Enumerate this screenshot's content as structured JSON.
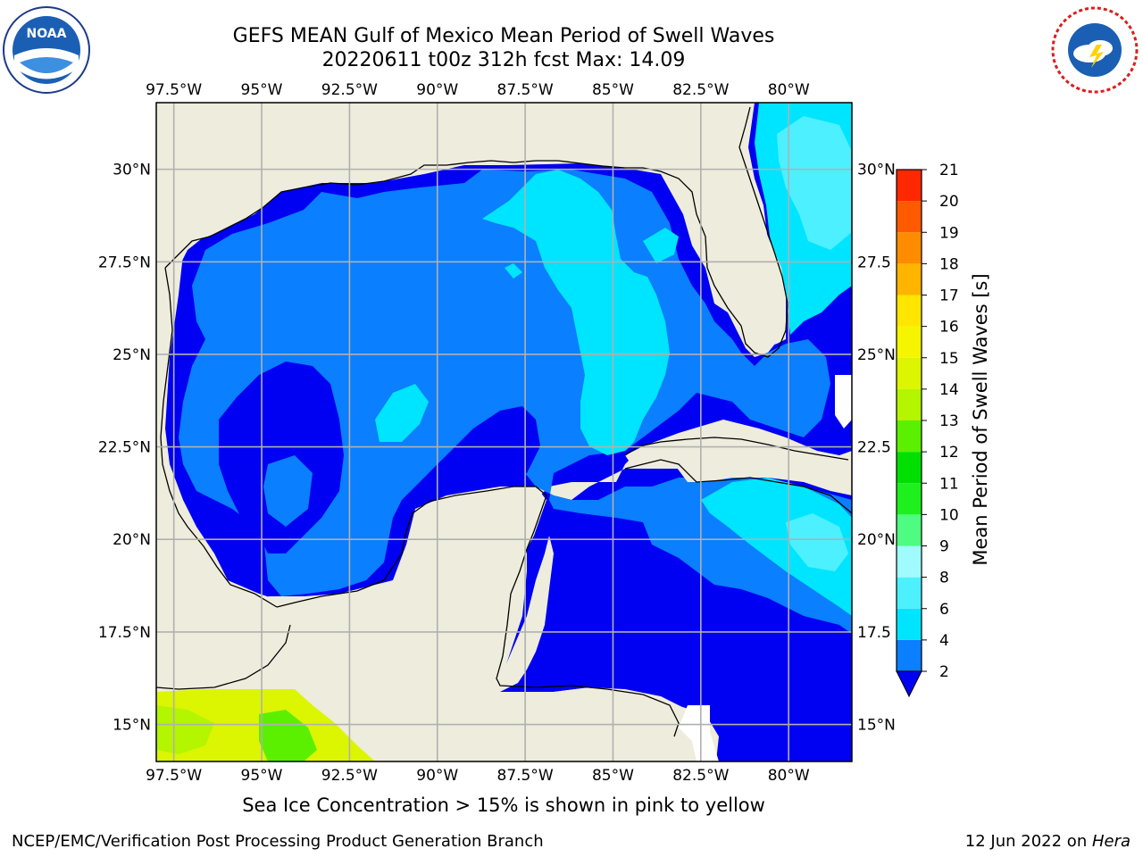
{
  "title": {
    "line1": "GEFS MEAN Gulf of Mexico Mean Period of Swell Waves",
    "line2": "20220611 t00z 312h fcst   Max: 14.09"
  },
  "logos": {
    "left": "noaa-logo",
    "right": "nws-logo",
    "left_text": "NOAA",
    "right_text": "NATIONAL WEATHER SERVICE"
  },
  "map": {
    "lon_labels": [
      "97.5°W",
      "95°W",
      "92.5°W",
      "90°W",
      "87.5°W",
      "85°W",
      "82.5°W",
      "80°W"
    ],
    "lat_labels_left": [
      "30°N",
      "27.5°N",
      "25°N",
      "22.5°N",
      "20°N",
      "17.5°N",
      "15°N"
    ],
    "lat_labels_right": [
      "30°N",
      "27.5",
      "25°N",
      "22.5",
      "20°N",
      "17.5",
      "15°N"
    ],
    "extent": {
      "lon_min": -98,
      "lon_max": -78.2,
      "lat_min": 14.0,
      "lat_max": 31.8
    },
    "colors": {
      "land": "#eeecdc",
      "grid": "#b0b0b0",
      "coast": "#000000"
    }
  },
  "colorbar": {
    "label": "Mean Period of Swell Waves [s]",
    "ticks": [
      "2",
      "4",
      "6",
      "8",
      "9",
      "10",
      "11",
      "12",
      "13",
      "14",
      "15",
      "16",
      "17",
      "18",
      "19",
      "20",
      "21"
    ],
    "colors": [
      "#0a7fff",
      "#00e5ff",
      "#4df0ff",
      "#a0fbff",
      "#4dfc80",
      "#1ef01e",
      "#00e000",
      "#5af000",
      "#b4f500",
      "#dcf500",
      "#f5f500",
      "#ffe600",
      "#ffb400",
      "#ff8c00",
      "#ff5a00",
      "#ff2800",
      "#ff0000"
    ],
    "under_color": "#0000f2"
  },
  "footer": {
    "note": "Sea Ice Concentration > 15% is shown in pink to yellow",
    "credit_left": "NCEP/EMC/Verification Post Processing Product Generation Branch",
    "credit_right_date": "12 Jun 2022 on ",
    "credit_right_host": "Hera"
  }
}
